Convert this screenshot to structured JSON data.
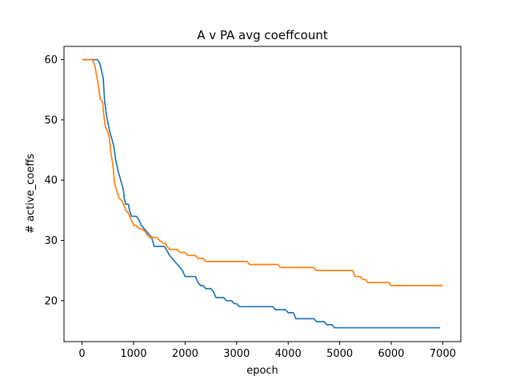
{
  "chart_data": {
    "type": "line",
    "title": "A v PA avg coeffcount",
    "xlabel": "epoch",
    "ylabel": "# active_coeffs",
    "xlim": [
      -350,
      7350
    ],
    "ylim": [
      13.2,
      62.2
    ],
    "xticks": [
      0,
      1000,
      2000,
      3000,
      4000,
      5000,
      6000,
      7000
    ],
    "yticks": [
      20,
      30,
      40,
      50,
      60
    ],
    "grid": false,
    "legend": "none",
    "series": [
      {
        "color": "#1f77b4",
        "points": [
          [
            0,
            60
          ],
          [
            300,
            60
          ],
          [
            340,
            59.5
          ],
          [
            370,
            58.5
          ],
          [
            410,
            57
          ],
          [
            440,
            53
          ],
          [
            480,
            50.5
          ],
          [
            540,
            48
          ],
          [
            590,
            46.5
          ],
          [
            620,
            45.5
          ],
          [
            650,
            43.5
          ],
          [
            700,
            41.5
          ],
          [
            750,
            40
          ],
          [
            800,
            38.5
          ],
          [
            820,
            37
          ],
          [
            850,
            36
          ],
          [
            900,
            36
          ],
          [
            920,
            35
          ],
          [
            960,
            34
          ],
          [
            1050,
            34
          ],
          [
            1100,
            33.5
          ],
          [
            1150,
            32.5
          ],
          [
            1250,
            31.5
          ],
          [
            1300,
            31
          ],
          [
            1350,
            30.5
          ],
          [
            1400,
            29
          ],
          [
            1550,
            29
          ],
          [
            1600,
            29
          ],
          [
            1700,
            27.5
          ],
          [
            1800,
            26.5
          ],
          [
            1900,
            25.5
          ],
          [
            1950,
            25
          ],
          [
            2000,
            24
          ],
          [
            2200,
            24
          ],
          [
            2250,
            23
          ],
          [
            2300,
            22.5
          ],
          [
            2350,
            22.5
          ],
          [
            2400,
            22
          ],
          [
            2500,
            22
          ],
          [
            2550,
            21.5
          ],
          [
            2600,
            20.5
          ],
          [
            2750,
            20.5
          ],
          [
            2800,
            20
          ],
          [
            2900,
            20
          ],
          [
            2950,
            19.5
          ],
          [
            3000,
            19.5
          ],
          [
            3050,
            19
          ],
          [
            3700,
            19
          ],
          [
            3750,
            18.5
          ],
          [
            3950,
            18.5
          ],
          [
            4000,
            18
          ],
          [
            4100,
            18
          ],
          [
            4150,
            17
          ],
          [
            4500,
            17
          ],
          [
            4550,
            16.5
          ],
          [
            4700,
            16.5
          ],
          [
            4750,
            16
          ],
          [
            4850,
            16
          ],
          [
            4900,
            15.5
          ],
          [
            6950,
            15.5
          ]
        ]
      },
      {
        "color": "#ff7f0e",
        "points": [
          [
            0,
            60
          ],
          [
            200,
            60
          ],
          [
            250,
            59
          ],
          [
            280,
            57.5
          ],
          [
            330,
            55
          ],
          [
            350,
            53.5
          ],
          [
            400,
            53
          ],
          [
            420,
            51
          ],
          [
            450,
            49
          ],
          [
            500,
            48
          ],
          [
            530,
            47
          ],
          [
            560,
            44.5
          ],
          [
            600,
            42.5
          ],
          [
            630,
            39.5
          ],
          [
            680,
            38
          ],
          [
            720,
            37
          ],
          [
            780,
            36.5
          ],
          [
            830,
            35.5
          ],
          [
            850,
            35
          ],
          [
            900,
            34.5
          ],
          [
            950,
            33.5
          ],
          [
            1000,
            32.5
          ],
          [
            1050,
            32.5
          ],
          [
            1100,
            32
          ],
          [
            1180,
            31.8
          ],
          [
            1220,
            31.5
          ],
          [
            1300,
            30.5
          ],
          [
            1450,
            30.5
          ],
          [
            1500,
            30
          ],
          [
            1580,
            29.5
          ],
          [
            1620,
            29.5
          ],
          [
            1650,
            29
          ],
          [
            1700,
            28.5
          ],
          [
            1850,
            28.5
          ],
          [
            1900,
            28
          ],
          [
            2000,
            28
          ],
          [
            2050,
            27.5
          ],
          [
            2200,
            27.5
          ],
          [
            2250,
            27
          ],
          [
            2350,
            27
          ],
          [
            2400,
            26.5
          ],
          [
            3200,
            26.5
          ],
          [
            3250,
            26
          ],
          [
            3800,
            26
          ],
          [
            3850,
            25.5
          ],
          [
            4500,
            25.5
          ],
          [
            4550,
            25
          ],
          [
            5250,
            25
          ],
          [
            5300,
            24
          ],
          [
            5400,
            24
          ],
          [
            5450,
            23.5
          ],
          [
            5500,
            23.5
          ],
          [
            5550,
            23
          ],
          [
            5950,
            23
          ],
          [
            6000,
            22.5
          ],
          [
            7000,
            22.5
          ]
        ]
      }
    ]
  }
}
